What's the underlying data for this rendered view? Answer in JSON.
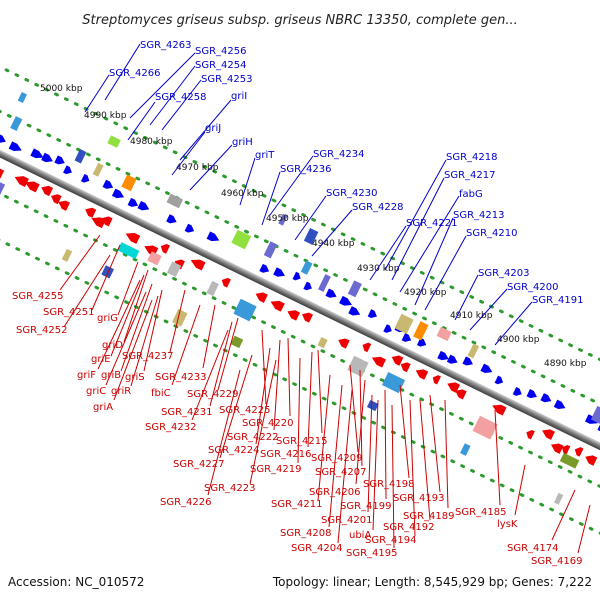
{
  "title": "Streptomyces griseus subsp. griseus NBRC 13350, complete gen...",
  "footer": {
    "accession": "Accession: NC_010572",
    "summary": "Topology: linear; Length: 8,545,929 bp; Genes: 7,222"
  },
  "scale": [
    "5000 kbp",
    "4990 kbp",
    "4980 kbp",
    "4970 kbp",
    "4960 kbp",
    "4950 kbp",
    "4940 kbp",
    "4930 kbp",
    "4920 kbp",
    "4910 kbp",
    "4900 kbp",
    "4890 kbp"
  ],
  "labels_top": [
    "SGR_4263",
    "SGR_4256",
    "SGR_4254",
    "SGR_4266",
    "SGR_4253",
    "SGR_4258",
    "griI",
    "griJ",
    "griH",
    "griT",
    "SGR_4234",
    "SGR_4236",
    "SGR_4218",
    "SGR_4217",
    "fabG",
    "SGR_4230",
    "SGR_4228",
    "SGR_4221",
    "SGR_4213",
    "SGR_4210",
    "SGR_4203",
    "SGR_4200",
    "SGR_4191"
  ],
  "labels_bottom": [
    "SGR_4255",
    "SGR_4251",
    "SGR_4252",
    "griG",
    "griD",
    "griE",
    "SGR_4237",
    "griF",
    "griB",
    "griS",
    "griC",
    "griR",
    "griA",
    "SGR_4233",
    "fbiC",
    "SGR_4229",
    "SGR_4231",
    "SGR_4225",
    "SGR_4232",
    "SGR_4220",
    "SGR_4222",
    "SGR_4215",
    "SGR_4224",
    "SGR_4216",
    "SGR_4209",
    "SGR_4227",
    "SGR_4219",
    "SGR_4207",
    "SGR_4223",
    "SGR_4198",
    "SGR_4206",
    "SGR_4193",
    "SGR_4226",
    "SGR_4199",
    "SGR_4211",
    "SGR_4189",
    "SGR_4185",
    "SGR_4201",
    "SGR_4192",
    "SGR_4208",
    "ubiA",
    "lysK",
    "SGR_4194",
    "SGR_4204",
    "SGR_4195",
    "SGR_4174",
    "SGR_4169"
  ],
  "colors": {
    "forward_strand": "#0000ee",
    "reverse_strand": "#ee0000",
    "backbone": "#888888",
    "gc_dots": "#2c9a2c"
  }
}
